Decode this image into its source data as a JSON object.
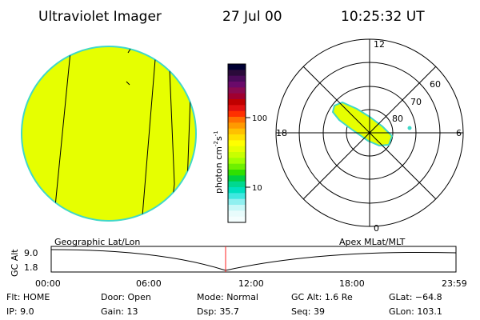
{
  "header": {
    "title": "Ultraviolet Imager",
    "date": "27 Jul 00",
    "time": "10:25:32 UT"
  },
  "colorbar": {
    "label": "photon cm",
    "label_exp1": "-2",
    "label_s": "s",
    "label_exp2": "-1",
    "tick_100": "100",
    "tick_10": "10",
    "colors": [
      "#000033",
      "#2a0a3a",
      "#4a0a5a",
      "#6a0a6a",
      "#8a0a50",
      "#a00030",
      "#c00000",
      "#e01010",
      "#ff3000",
      "#ff7000",
      "#ff9a00",
      "#ffc000",
      "#ffe000",
      "#ffff00",
      "#e6ff00",
      "#c8ff00",
      "#a0ff00",
      "#6ef000",
      "#30e000",
      "#00d040",
      "#00d890",
      "#00e0c0",
      "#40e8e0",
      "#90f0f0",
      "#c8f8f8",
      "#e8fcfc",
      "#f4fefe"
    ]
  },
  "polar": {
    "lat_labels": [
      "60",
      "70",
      "80"
    ],
    "mlt_labels": [
      "12",
      "18",
      "6",
      "0"
    ]
  },
  "timeline": {
    "ylabel": "GC Alt",
    "y_high": "9.0",
    "y_low": "1.8",
    "left_label": "Geographic Lat/Lon",
    "right_label": "Apex MLat/MLT",
    "x_ticks": [
      "00:00",
      "06:00",
      "12:00",
      "18:00",
      "23:59"
    ]
  },
  "info": {
    "row1": [
      {
        "label": "Flt:",
        "value": "HOME"
      },
      {
        "label": "Door:",
        "value": "Open"
      },
      {
        "label": "Mode:",
        "value": "Normal"
      },
      {
        "label": "GC Alt:",
        "value": "1.6 Re"
      },
      {
        "label": "GLat:",
        "value": "−64.8"
      }
    ],
    "row2": [
      {
        "label": "IP:",
        "value": "9.0"
      },
      {
        "label": "Gain:",
        "value": "13"
      },
      {
        "label": "Dsp:",
        "value": "35.7"
      },
      {
        "label": "Seq:",
        "value": "39"
      },
      {
        "label": "GLon:",
        "value": "103.1"
      }
    ]
  },
  "colors": {
    "disk_fill": "#e6ff00",
    "disk_edge": "#40d8c8",
    "aurora_fill": "#e6ff00",
    "current_time_marker": "#ff2020"
  }
}
